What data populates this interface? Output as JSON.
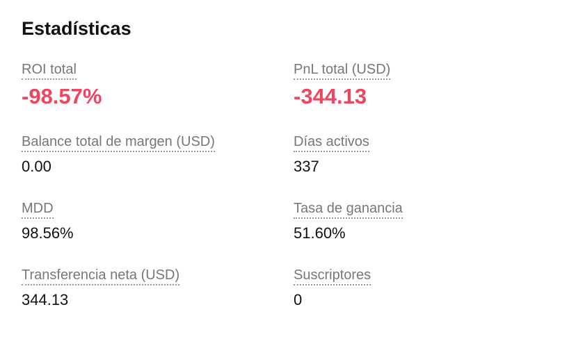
{
  "title": "Estadísticas",
  "accent_negative": "#F0455F",
  "stats": [
    {
      "label": "ROI total",
      "value": "-98.57%"
    },
    {
      "label": "PnL total (USD)",
      "value": "-344.13"
    },
    {
      "label": "Balance total de margen (USD)",
      "value": "0.00"
    },
    {
      "label": "Días activos",
      "value": "337"
    },
    {
      "label": "MDD",
      "value": "98.56%"
    },
    {
      "label": "Tasa de ganancia",
      "value": "51.60%"
    },
    {
      "label": "Transferencia neta (USD)",
      "value": "344.13"
    },
    {
      "label": "Suscriptores",
      "value": "0"
    }
  ]
}
